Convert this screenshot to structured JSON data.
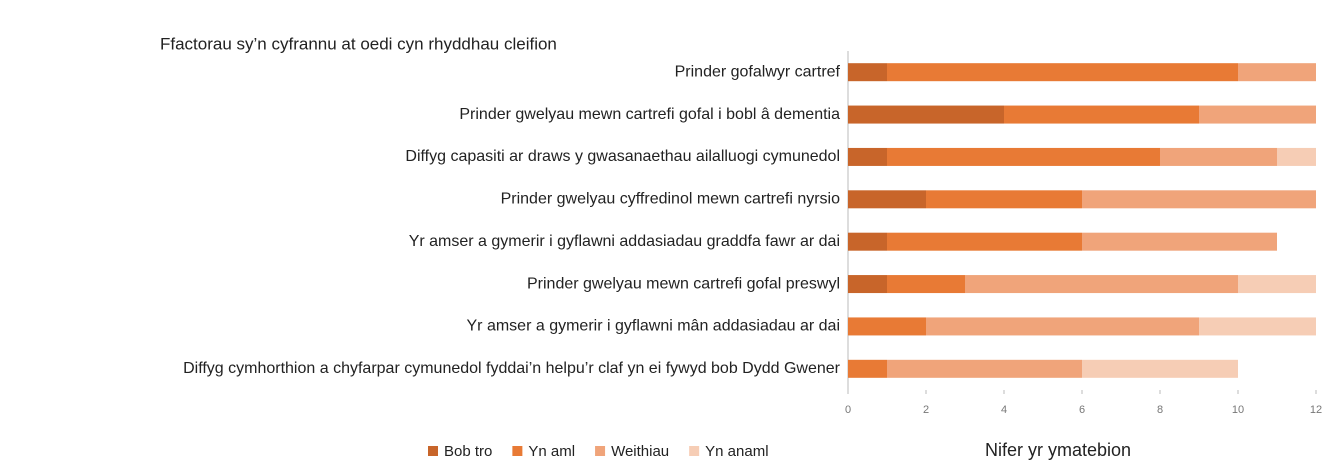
{
  "chart_data": {
    "type": "stacked_barh",
    "title": "Ffactorau sy’n cyfrannu at oedi cyn rhyddhau cleifion",
    "xlabel": "Nifer yr ymatebion",
    "categories": [
      "Prinder gofalwyr cartref",
      "Prinder gwelyau mewn cartrefi gofal i bobl â dementia",
      "Diffyg capasiti ar draws y gwasanaethau ailalluogi cymunedol",
      "Prinder gwelyau cyffredinol mewn cartrefi nyrsio",
      "Yr amser a gymerir i gyflawni addasiadau graddfa fawr ar dai",
      "Prinder gwelyau mewn cartrefi gofal preswyl",
      "Yr amser a gymerir i gyflawni mân addasiadau ar dai",
      "Diffyg cymhorthion a chyfarpar cymunedol fyddai’n helpu’r claf yn ei fywyd bob Dydd Gwener"
    ],
    "series": [
      {
        "name": "Bob tro",
        "color": "#c8652a",
        "values": [
          1,
          4,
          1,
          2,
          1,
          1,
          0,
          0
        ]
      },
      {
        "name": "Yn aml",
        "color": "#e87a35",
        "values": [
          9,
          5,
          7,
          4,
          5,
          2,
          2,
          1
        ]
      },
      {
        "name": "Weithiau",
        "color": "#f0a47a",
        "values": [
          2,
          3,
          3,
          6,
          5,
          7,
          7,
          5
        ]
      },
      {
        "name": "Yn anaml",
        "color": "#f6cdb5",
        "values": [
          0,
          0,
          1,
          0,
          0,
          2,
          3,
          4
        ]
      }
    ],
    "xlim": [
      0,
      12
    ],
    "xticks": [
      0,
      2,
      4,
      6,
      8,
      10,
      12
    ]
  }
}
